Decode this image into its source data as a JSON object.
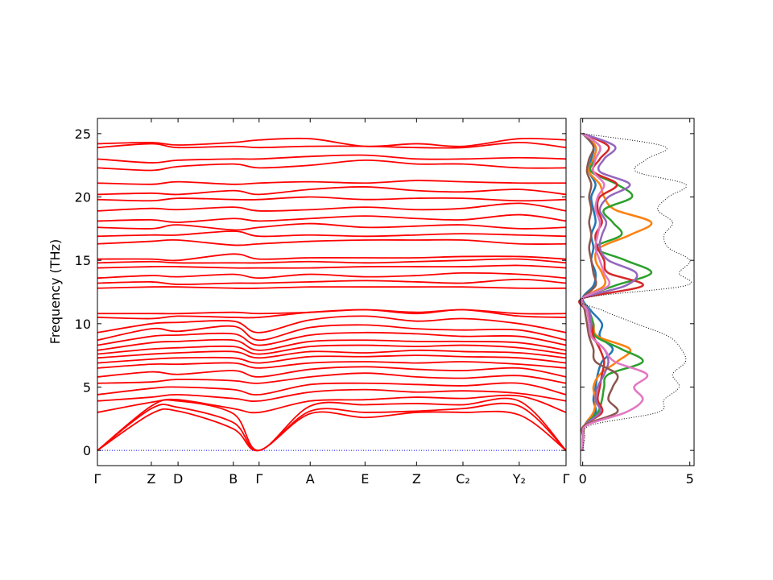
{
  "chart_data": [
    {
      "type": "bands",
      "ylabel": "Frequency (THz)",
      "color": "#ff0000",
      "x": [
        0,
        0.115,
        0.172,
        0.29,
        0.345,
        0.454,
        0.571,
        0.681,
        0.78,
        0.9,
        1.0
      ],
      "xlim": [
        0,
        1.0
      ],
      "xticks": [
        {
          "value": 0,
          "label": "Γ"
        },
        {
          "value": 0.115,
          "label": "Z"
        },
        {
          "value": 0.172,
          "label": "D"
        },
        {
          "value": 0.29,
          "label": "B"
        },
        {
          "value": 0.345,
          "label": "Γ"
        },
        {
          "value": 0.454,
          "label": "A"
        },
        {
          "value": 0.571,
          "label": "E"
        },
        {
          "value": 0.681,
          "label": "Z"
        },
        {
          "value": 0.78,
          "label": "C₂"
        },
        {
          "value": 0.9,
          "label": "Y₂"
        },
        {
          "value": 1.0,
          "label": "Γ"
        }
      ],
      "ylim": [
        -1.2,
        26.2
      ],
      "yticks": [
        0,
        5,
        10,
        15,
        20,
        25
      ],
      "bands": [
        [
          0,
          2.9,
          3.1,
          1.7,
          0,
          2.9,
          2.6,
          3.0,
          3.0,
          2.8,
          0
        ],
        [
          0,
          3.3,
          3.4,
          2.2,
          0,
          3.1,
          3.0,
          3.1,
          3.3,
          3.5,
          0
        ],
        [
          0,
          3.5,
          3.9,
          2.9,
          0,
          3.5,
          3.6,
          3.7,
          3.6,
          3.9,
          0
        ],
        [
          3.0,
          3.8,
          4.0,
          3.3,
          3.0,
          3.9,
          4.0,
          4.2,
          4.1,
          4.3,
          3.0
        ],
        [
          3.9,
          4.2,
          4.4,
          4.1,
          3.9,
          4.6,
          4.8,
          4.6,
          4.7,
          4.5,
          3.9
        ],
        [
          4.4,
          4.9,
          5.0,
          4.8,
          4.4,
          5.2,
          5.3,
          5.2,
          5.1,
          5.3,
          4.4
        ],
        [
          5.3,
          5.4,
          5.6,
          5.5,
          5.3,
          5.8,
          6.1,
          5.8,
          5.7,
          5.9,
          5.3
        ],
        [
          5.8,
          6.2,
          6.0,
          6.3,
          5.8,
          6.4,
          6.6,
          6.4,
          6.3,
          6.5,
          5.8
        ],
        [
          6.5,
          6.8,
          6.8,
          6.9,
          6.5,
          6.9,
          7.0,
          6.9,
          7.0,
          6.8,
          6.5
        ],
        [
          6.9,
          7.2,
          7.3,
          7.3,
          6.9,
          7.4,
          7.4,
          7.5,
          7.4,
          7.3,
          6.9
        ],
        [
          7.3,
          7.6,
          7.7,
          7.8,
          7.3,
          7.8,
          7.7,
          7.9,
          7.8,
          7.7,
          7.3
        ],
        [
          7.6,
          8.0,
          8.1,
          8.2,
          7.6,
          8.2,
          8.3,
          8.2,
          8.3,
          8.1,
          7.6
        ],
        [
          7.9,
          8.5,
          8.6,
          8.7,
          7.9,
          8.6,
          8.7,
          8.6,
          8.6,
          8.5,
          7.9
        ],
        [
          8.3,
          9.0,
          9.1,
          9.2,
          8.3,
          9.1,
          9.3,
          9.2,
          9.0,
          9.0,
          8.3
        ],
        [
          8.7,
          9.6,
          9.4,
          9.8,
          8.7,
          9.7,
          9.9,
          9.6,
          9.5,
          9.5,
          8.7
        ],
        [
          9.3,
          10.0,
          10.1,
          10.2,
          9.3,
          10.3,
          10.6,
          10.2,
          10.4,
          10.0,
          9.3
        ],
        [
          10.5,
          10.4,
          10.6,
          10.5,
          10.5,
          10.9,
          11.1,
          10.8,
          11.1,
          10.6,
          10.5
        ],
        [
          10.8,
          10.8,
          10.8,
          10.9,
          10.8,
          10.9,
          11.1,
          10.9,
          11.1,
          10.8,
          10.8
        ],
        [
          12.8,
          12.9,
          12.9,
          12.8,
          12.8,
          12.9,
          12.9,
          12.9,
          12.9,
          12.8,
          12.8
        ],
        [
          13.2,
          13.3,
          13.1,
          13.2,
          13.2,
          13.3,
          13.4,
          13.3,
          13.2,
          13.5,
          13.2
        ],
        [
          13.6,
          13.8,
          13.7,
          13.9,
          13.6,
          13.9,
          13.7,
          13.8,
          14.0,
          13.9,
          13.6
        ],
        [
          14.4,
          14.5,
          14.5,
          14.4,
          14.4,
          14.4,
          14.5,
          14.5,
          14.5,
          14.6,
          14.4
        ],
        [
          14.8,
          14.9,
          14.8,
          14.8,
          14.8,
          14.9,
          14.8,
          14.9,
          15.0,
          15.1,
          14.8
        ],
        [
          15.1,
          15.1,
          15.0,
          15.5,
          15.1,
          15.2,
          15.2,
          15.2,
          15.3,
          15.3,
          15.1
        ],
        [
          16.3,
          16.5,
          16.6,
          16.2,
          16.3,
          16.5,
          16.6,
          16.6,
          16.6,
          16.3,
          16.3
        ],
        [
          16.9,
          17.0,
          17.0,
          17.3,
          16.9,
          17.0,
          16.9,
          17.0,
          17.1,
          17.0,
          16.9
        ],
        [
          17.6,
          17.5,
          17.8,
          17.4,
          17.6,
          17.9,
          17.6,
          17.7,
          17.8,
          17.5,
          17.6
        ],
        [
          18.1,
          18.2,
          18.0,
          18.3,
          18.1,
          18.3,
          18.5,
          18.3,
          18.2,
          18.6,
          18.1
        ],
        [
          18.9,
          19.1,
          19.0,
          19.2,
          18.9,
          19.0,
          19.2,
          19.0,
          19.1,
          19.5,
          18.9
        ],
        [
          19.8,
          19.7,
          19.9,
          19.8,
          19.8,
          20.0,
          19.8,
          19.9,
          19.9,
          19.7,
          19.8
        ],
        [
          20.2,
          20.3,
          20.2,
          20.5,
          20.2,
          20.6,
          20.8,
          20.5,
          20.4,
          20.6,
          20.2
        ],
        [
          21.1,
          21.0,
          21.2,
          21.0,
          21.1,
          21.2,
          21.1,
          21.3,
          21.2,
          21.1,
          21.1
        ],
        [
          22.3,
          22.1,
          22.4,
          22.6,
          22.3,
          22.5,
          22.9,
          22.6,
          22.6,
          22.3,
          22.3
        ],
        [
          23.0,
          22.7,
          22.9,
          23.0,
          23.0,
          23.2,
          23.3,
          23.0,
          23.0,
          23.1,
          23.0
        ],
        [
          23.9,
          24.2,
          23.9,
          24.0,
          23.9,
          24.0,
          24.0,
          23.9,
          23.9,
          24.3,
          23.9
        ],
        [
          24.2,
          24.3,
          24.1,
          24.3,
          24.5,
          24.6,
          24.0,
          24.2,
          24.0,
          24.6,
          24.5
        ]
      ]
    },
    {
      "type": "dos",
      "color": "#000000",
      "frequencies": [
        0,
        1,
        2,
        3,
        4,
        5,
        6,
        7,
        8,
        9,
        10,
        11,
        12,
        13,
        14,
        15,
        16,
        17,
        18,
        19,
        20,
        21,
        22,
        23,
        24,
        25
      ],
      "values": [
        0,
        0.1,
        0.4,
        3.5,
        3.8,
        4.5,
        4.2,
        4.8,
        4.6,
        4.0,
        2.5,
        1.0,
        0,
        4.8,
        4.5,
        5.0,
        4.0,
        3.8,
        4.2,
        3.5,
        4.0,
        4.8,
        2.5,
        3.0,
        3.8,
        0
      ],
      "xlim": [
        -0.1,
        5.2
      ],
      "xticks": [
        0,
        5
      ],
      "series": [
        {
          "color": "#1f77b4",
          "values": [
            0,
            0.02,
            0.1,
            0.6,
            0.5,
            0.6,
            0.7,
            0.9,
            1.4,
            0.8,
            0.9,
            0.4,
            0,
            0.5,
            0.6,
            0.4,
            0.5,
            0.4,
            0.6,
            0.5,
            0.4,
            0.6,
            0.3,
            0.4,
            0.5,
            0
          ]
        },
        {
          "color": "#ff7f0e",
          "values": [
            0,
            0.02,
            0.1,
            0.5,
            0.6,
            0.5,
            0.8,
            1.6,
            2.2,
            0.7,
            0.5,
            0.3,
            0,
            1.0,
            0.9,
            0.6,
            0.8,
            2.2,
            3.2,
            1.5,
            1.0,
            0.8,
            0.3,
            0.5,
            0.6,
            0
          ]
        },
        {
          "color": "#2ca02c",
          "values": [
            0,
            0.02,
            0.1,
            0.7,
            0.9,
            1.0,
            1.2,
            2.8,
            1.8,
            0.6,
            0.5,
            0.3,
            0,
            1.5,
            3.2,
            2.0,
            0.6,
            1.8,
            1.4,
            1.0,
            2.3,
            1.6,
            0.4,
            0.6,
            0.8,
            0
          ]
        },
        {
          "color": "#d62728",
          "values": [
            0,
            0.02,
            0.1,
            0.9,
            0.7,
            0.8,
            0.9,
            1.0,
            0.8,
            0.5,
            0.4,
            0.2,
            0,
            2.8,
            1.2,
            1.0,
            0.7,
            0.6,
            0.9,
            0.7,
            0.8,
            1.6,
            0.5,
            0.8,
            1.2,
            0
          ]
        },
        {
          "color": "#9467bd",
          "values": [
            0,
            0.02,
            0.1,
            0.8,
            0.6,
            0.7,
            1.0,
            1.2,
            1.0,
            0.4,
            0.4,
            0.3,
            0,
            2.0,
            2.5,
            1.2,
            0.8,
            0.9,
            1.1,
            0.8,
            1.2,
            2.2,
            0.8,
            1.0,
            1.5,
            0
          ]
        },
        {
          "color": "#8c564b",
          "values": [
            0,
            0.02,
            0.1,
            1.6,
            1.2,
            1.4,
            1.6,
            0.6,
            0.5,
            0.3,
            0.2,
            0.1,
            0,
            0.6,
            0.5,
            0.4,
            0.3,
            0.4,
            0.3,
            0.4,
            0.3,
            0.4,
            0.2,
            0.3,
            0.5,
            0
          ]
        },
        {
          "color": "#e377c2",
          "values": [
            0,
            0.03,
            0.2,
            2.0,
            2.8,
            2.4,
            3.0,
            1.5,
            1.0,
            0.4,
            0.3,
            0.2,
            0,
            1.2,
            1.0,
            0.8,
            0.6,
            0.7,
            0.8,
            0.6,
            0.7,
            1.0,
            0.5,
            0.6,
            0.8,
            0
          ]
        }
      ]
    }
  ]
}
